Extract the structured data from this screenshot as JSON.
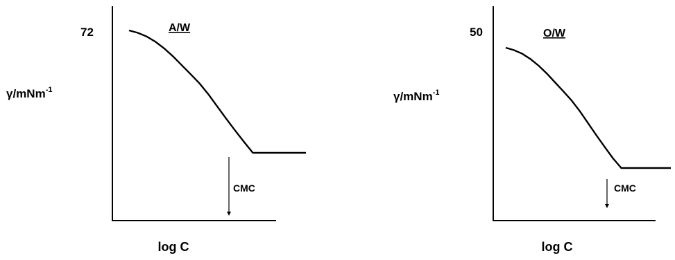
{
  "chart_data": [
    {
      "type": "line",
      "panel_label": "A/W",
      "ylabel": "γ/mNm",
      "ylabel_sup": "-1",
      "xlabel": "log C",
      "y_tick_label": "72",
      "annotation": "CMC",
      "axes_numbered": false,
      "series": [
        {
          "x": [
            0.0,
            0.05,
            0.1,
            0.15,
            0.2,
            0.25,
            0.3,
            0.35,
            0.4,
            0.45,
            0.5,
            0.55,
            0.6,
            0.65,
            0.7,
            1.0
          ],
          "y": [
            72.0,
            71.0,
            69.5,
            67.3,
            64.5,
            61.2,
            57.5,
            53.8,
            50.0,
            45.5,
            40.5,
            35.5,
            30.7,
            26.0,
            21.5,
            21.5
          ]
        }
      ],
      "cmc_x": 0.7
    },
    {
      "type": "line",
      "panel_label": "O/W",
      "ylabel": "γ/mNm",
      "ylabel_sup": "-1",
      "xlabel": "log C",
      "y_tick_label": "50",
      "annotation": "CMC",
      "axes_numbered": false,
      "series": [
        {
          "x": [
            0.0,
            0.05,
            0.1,
            0.15,
            0.2,
            0.25,
            0.3,
            0.35,
            0.4,
            0.45,
            0.5,
            0.55,
            0.6,
            0.65,
            0.7,
            1.0
          ],
          "y": [
            50.0,
            49.0,
            47.5,
            45.3,
            42.5,
            39.2,
            35.5,
            31.8,
            28.0,
            23.5,
            18.5,
            13.5,
            8.7,
            4.0,
            0.0,
            0.0
          ]
        }
      ],
      "cmc_x": 0.7
    }
  ]
}
